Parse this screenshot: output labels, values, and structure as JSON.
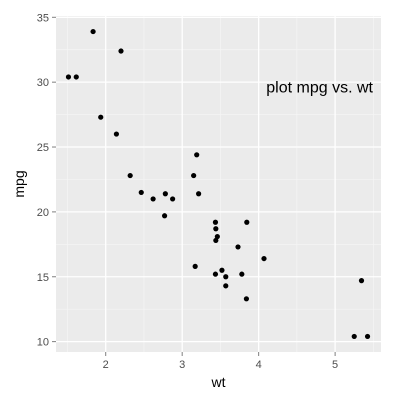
{
  "chart_data": {
    "type": "scatter",
    "title": "",
    "xlabel": "wt",
    "ylabel": "mpg",
    "xlim": [
      1.35,
      5.6
    ],
    "ylim": [
      9.2,
      35.1
    ],
    "xticks": [
      2,
      3,
      4,
      5
    ],
    "yticks": [
      10,
      15,
      20,
      25,
      30,
      35
    ],
    "xtick_labels": [
      "2",
      "3",
      "4",
      "5"
    ],
    "ytick_labels": [
      "10",
      "15",
      "20",
      "25",
      "30",
      "35"
    ],
    "grid": true,
    "annotation": {
      "text": "plot mpg vs. wt",
      "x": 4.1,
      "y": 29.6
    },
    "points": [
      {
        "x": 1.513,
        "y": 30.4
      },
      {
        "x": 1.615,
        "y": 30.4
      },
      {
        "x": 1.835,
        "y": 33.9
      },
      {
        "x": 1.935,
        "y": 27.3
      },
      {
        "x": 2.14,
        "y": 26.0
      },
      {
        "x": 2.2,
        "y": 32.4
      },
      {
        "x": 2.32,
        "y": 22.8
      },
      {
        "x": 2.465,
        "y": 21.5
      },
      {
        "x": 2.62,
        "y": 21.0
      },
      {
        "x": 2.77,
        "y": 19.7
      },
      {
        "x": 2.78,
        "y": 21.4
      },
      {
        "x": 2.875,
        "y": 21.0
      },
      {
        "x": 3.15,
        "y": 22.8
      },
      {
        "x": 3.17,
        "y": 15.8
      },
      {
        "x": 3.19,
        "y": 24.4
      },
      {
        "x": 3.215,
        "y": 21.4
      },
      {
        "x": 3.435,
        "y": 19.2
      },
      {
        "x": 3.44,
        "y": 18.7
      },
      {
        "x": 3.44,
        "y": 17.8
      },
      {
        "x": 3.46,
        "y": 18.1
      },
      {
        "x": 3.52,
        "y": 15.5
      },
      {
        "x": 3.57,
        "y": 15.0
      },
      {
        "x": 3.57,
        "y": 14.3
      },
      {
        "x": 3.73,
        "y": 17.3
      },
      {
        "x": 3.78,
        "y": 15.2
      },
      {
        "x": 3.84,
        "y": 13.3
      },
      {
        "x": 3.845,
        "y": 19.2
      },
      {
        "x": 4.07,
        "y": 16.4
      },
      {
        "x": 5.25,
        "y": 10.4
      },
      {
        "x": 5.345,
        "y": 14.7
      },
      {
        "x": 5.424,
        "y": 10.4
      },
      {
        "x": 3.435,
        "y": 15.2
      }
    ],
    "colors": {
      "panel": "#ebebeb",
      "grid_major": "#ffffff",
      "grid_minor": "#f5f5f5",
      "point": "#000000",
      "tick_label": "#4d4d4d"
    }
  }
}
